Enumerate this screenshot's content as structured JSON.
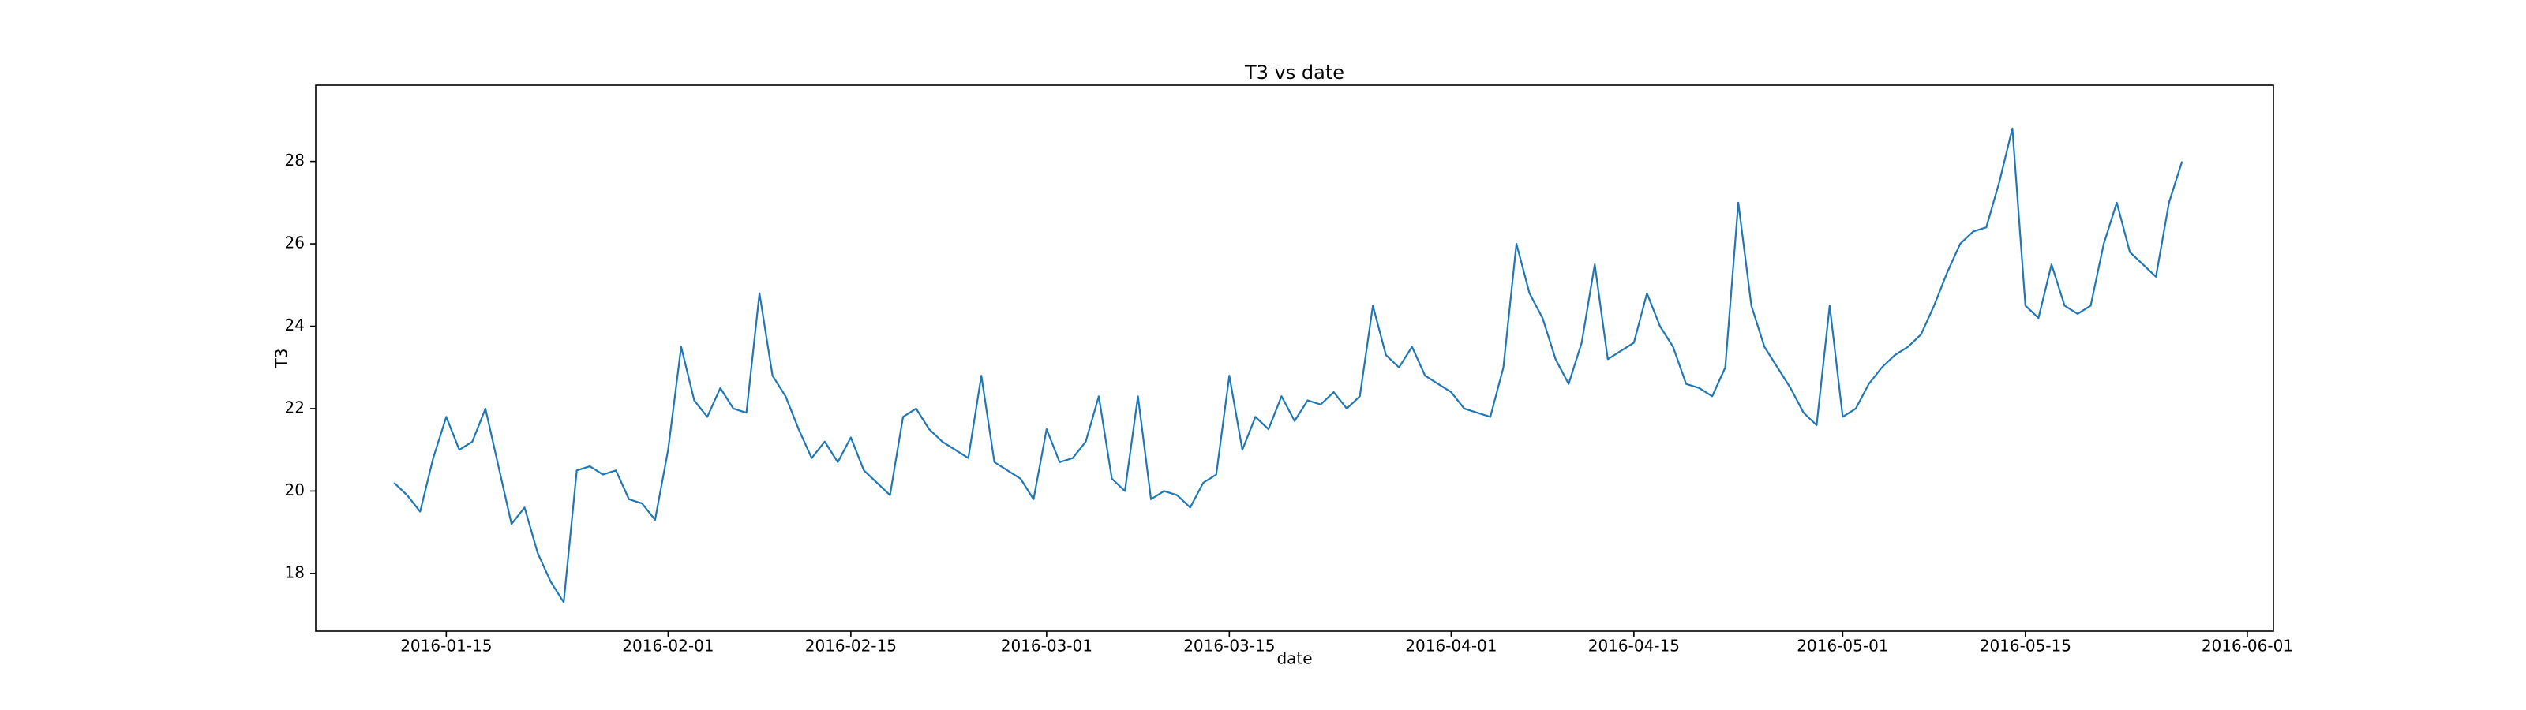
{
  "chart_data": {
    "type": "line",
    "title": "T3 vs date",
    "x_label": "date",
    "y_label": "T3",
    "x": [
      "2016-01-11",
      "2016-01-12",
      "2016-01-13",
      "2016-01-14",
      "2016-01-15",
      "2016-01-16",
      "2016-01-17",
      "2016-01-18",
      "2016-01-19",
      "2016-01-20",
      "2016-01-21",
      "2016-01-22",
      "2016-01-23",
      "2016-01-24",
      "2016-01-25",
      "2016-01-26",
      "2016-01-27",
      "2016-01-28",
      "2016-01-29",
      "2016-01-30",
      "2016-01-31",
      "2016-02-01",
      "2016-02-02",
      "2016-02-03",
      "2016-02-04",
      "2016-02-05",
      "2016-02-06",
      "2016-02-07",
      "2016-02-08",
      "2016-02-09",
      "2016-02-10",
      "2016-02-11",
      "2016-02-12",
      "2016-02-13",
      "2016-02-14",
      "2016-02-15",
      "2016-02-16",
      "2016-02-17",
      "2016-02-18",
      "2016-02-19",
      "2016-02-20",
      "2016-02-21",
      "2016-02-22",
      "2016-02-23",
      "2016-02-24",
      "2016-02-25",
      "2016-02-26",
      "2016-02-27",
      "2016-02-28",
      "2016-02-29",
      "2016-03-01",
      "2016-03-02",
      "2016-03-03",
      "2016-03-04",
      "2016-03-05",
      "2016-03-06",
      "2016-03-07",
      "2016-03-08",
      "2016-03-09",
      "2016-03-10",
      "2016-03-11",
      "2016-03-12",
      "2016-03-13",
      "2016-03-14",
      "2016-03-15",
      "2016-03-16",
      "2016-03-17",
      "2016-03-18",
      "2016-03-19",
      "2016-03-20",
      "2016-03-21",
      "2016-03-22",
      "2016-03-23",
      "2016-03-24",
      "2016-03-25",
      "2016-03-26",
      "2016-03-27",
      "2016-03-28",
      "2016-03-29",
      "2016-03-30",
      "2016-03-31",
      "2016-04-01",
      "2016-04-02",
      "2016-04-03",
      "2016-04-04",
      "2016-04-05",
      "2016-04-06",
      "2016-04-07",
      "2016-04-08",
      "2016-04-09",
      "2016-04-10",
      "2016-04-11",
      "2016-04-12",
      "2016-04-13",
      "2016-04-14",
      "2016-04-15",
      "2016-04-16",
      "2016-04-17",
      "2016-04-18",
      "2016-04-19",
      "2016-04-20",
      "2016-04-21",
      "2016-04-22",
      "2016-04-23",
      "2016-04-24",
      "2016-04-25",
      "2016-04-26",
      "2016-04-27",
      "2016-04-28",
      "2016-04-29",
      "2016-04-30",
      "2016-05-01",
      "2016-05-02",
      "2016-05-03",
      "2016-05-04",
      "2016-05-05",
      "2016-05-06",
      "2016-05-07",
      "2016-05-08",
      "2016-05-09",
      "2016-05-10",
      "2016-05-11",
      "2016-05-12",
      "2016-05-13",
      "2016-05-14",
      "2016-05-15",
      "2016-05-16",
      "2016-05-17",
      "2016-05-18",
      "2016-05-19",
      "2016-05-20",
      "2016-05-21",
      "2016-05-22",
      "2016-05-23",
      "2016-05-24",
      "2016-05-25",
      "2016-05-26",
      "2016-05-27"
    ],
    "series": [
      {
        "color": "#1f77b4",
        "values": [
          20.2,
          19.9,
          19.5,
          20.8,
          21.8,
          21.0,
          21.2,
          22.0,
          20.6,
          19.2,
          19.6,
          18.5,
          17.8,
          17.3,
          20.5,
          20.6,
          20.4,
          20.5,
          19.8,
          19.7,
          19.3,
          21.0,
          23.5,
          22.2,
          21.8,
          22.5,
          22.0,
          21.9,
          24.8,
          22.8,
          22.3,
          21.5,
          20.8,
          21.2,
          20.7,
          21.3,
          20.5,
          20.2,
          19.9,
          21.8,
          22.0,
          21.5,
          21.2,
          21.0,
          20.8,
          22.8,
          20.7,
          20.5,
          20.3,
          19.8,
          21.5,
          20.7,
          20.8,
          21.2,
          22.3,
          20.3,
          20.0,
          22.3,
          19.8,
          20.0,
          19.9,
          19.6,
          20.2,
          20.4,
          22.8,
          21.0,
          21.8,
          21.5,
          22.3,
          21.7,
          22.2,
          22.1,
          22.4,
          22.0,
          22.3,
          24.5,
          23.3,
          23.0,
          23.5,
          22.8,
          22.6,
          22.4,
          22.0,
          21.9,
          21.8,
          23.0,
          26.0,
          24.8,
          24.2,
          23.2,
          22.6,
          23.6,
          25.5,
          23.2,
          23.4,
          23.6,
          24.8,
          24.0,
          23.5,
          22.6,
          22.5,
          22.3,
          23.0,
          27.0,
          24.5,
          23.5,
          23.0,
          22.5,
          21.9,
          21.6,
          24.5,
          21.8,
          22.0,
          22.6,
          23.0,
          23.3,
          23.5,
          23.8,
          24.5,
          25.3,
          26.0,
          26.3,
          26.4,
          27.5,
          28.8,
          24.5,
          24.2,
          25.5,
          24.5,
          24.3,
          24.5,
          26.0,
          27.0,
          25.8,
          25.5,
          25.2,
          27.0,
          28.0
        ]
      }
    ],
    "xlim": [
      "2016-01-05",
      "2016-06-03"
    ],
    "xticks": [
      "2016-01-15",
      "2016-02-01",
      "2016-02-15",
      "2016-03-01",
      "2016-03-15",
      "2016-04-01",
      "2016-04-15",
      "2016-05-01",
      "2016-05-15",
      "2016-06-01"
    ],
    "ylim": [
      16.6,
      29.85
    ],
    "yticks": [
      18,
      20,
      22,
      24,
      26,
      28
    ],
    "grid": false
  }
}
